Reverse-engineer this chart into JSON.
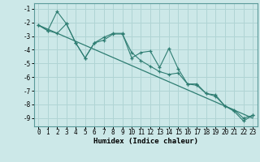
{
  "xlabel": "Humidex (Indice chaleur)",
  "background_color": "#cce8e8",
  "grid_color": "#b0d4d4",
  "line_color": "#2e7d72",
  "xlim": [
    -0.5,
    23.5
  ],
  "ylim": [
    -9.6,
    -0.6
  ],
  "xticks": [
    0,
    1,
    2,
    3,
    4,
    5,
    6,
    7,
    8,
    9,
    10,
    11,
    12,
    13,
    14,
    15,
    16,
    17,
    18,
    19,
    20,
    21,
    22,
    23
  ],
  "yticks": [
    -1,
    -2,
    -3,
    -4,
    -5,
    -6,
    -7,
    -8,
    -9
  ],
  "line1_x": [
    0,
    1,
    2,
    3,
    4,
    5,
    6,
    7,
    8,
    9,
    10,
    11,
    12,
    13,
    14,
    15,
    16,
    17,
    18,
    19,
    20,
    21,
    22,
    23
  ],
  "line1_y": [
    -2.2,
    -2.6,
    -1.2,
    -2.1,
    -3.5,
    -4.6,
    -3.5,
    -3.1,
    -2.8,
    -2.8,
    -4.6,
    -4.2,
    -4.1,
    -5.3,
    -3.9,
    -5.4,
    -6.5,
    -6.5,
    -7.2,
    -7.3,
    -8.1,
    -8.4,
    -9.0,
    -8.8
  ],
  "line2_x": [
    0,
    1,
    2,
    3,
    4,
    5,
    6,
    7,
    8,
    9,
    10,
    11,
    12,
    13,
    14,
    15,
    16,
    17,
    18,
    19,
    20,
    21,
    22,
    23
  ],
  "line2_y": [
    -2.2,
    -2.6,
    -2.8,
    -2.1,
    -3.5,
    -4.6,
    -3.5,
    -3.3,
    -2.85,
    -2.85,
    -4.2,
    -4.8,
    -5.2,
    -5.6,
    -5.8,
    -5.7,
    -6.5,
    -6.6,
    -7.2,
    -7.4,
    -8.1,
    -8.5,
    -9.2,
    -8.8
  ],
  "line3_x": [
    0,
    23
  ],
  "line3_y": [
    -2.2,
    -9.0
  ],
  "xlabel_fontsize": 6.5,
  "tick_fontsize": 5.5
}
